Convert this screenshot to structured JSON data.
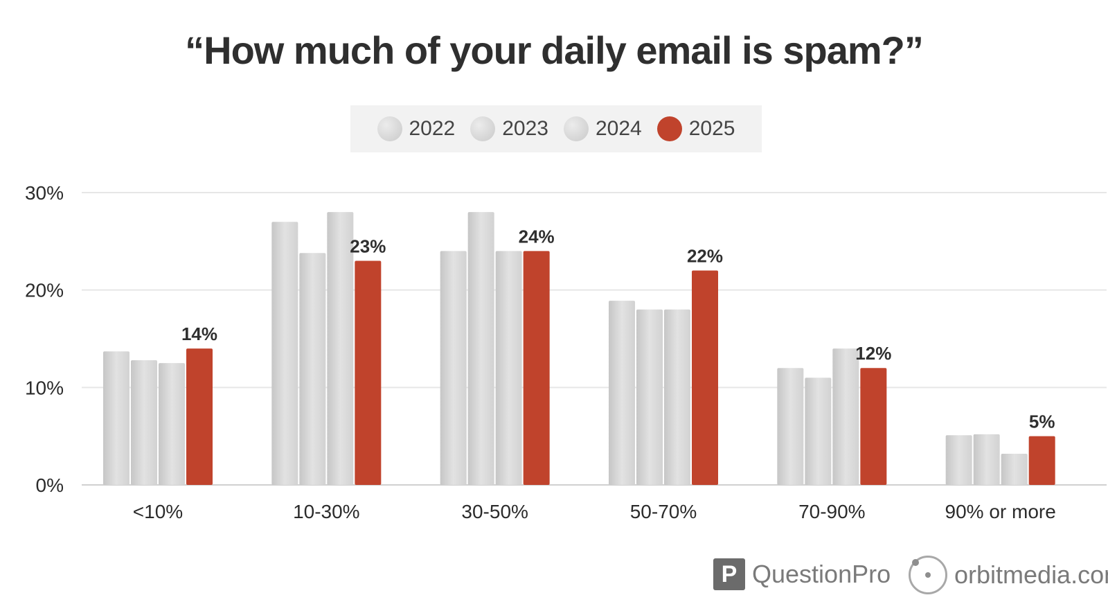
{
  "chart_data": {
    "type": "bar",
    "title": "“How much of your daily email is spam?”",
    "categories": [
      "<10%",
      "10-30%",
      "30-50%",
      "50-70%",
      "70-90%",
      "90% or more"
    ],
    "series": [
      {
        "name": "2022",
        "values": [
          13.7,
          27.0,
          24.0,
          18.9,
          12.0,
          5.1
        ],
        "color": "#d4d4d4"
      },
      {
        "name": "2023",
        "values": [
          12.8,
          23.8,
          28.0,
          18.0,
          11.0,
          5.2
        ],
        "color": "#d4d4d4"
      },
      {
        "name": "2024",
        "values": [
          12.5,
          28.0,
          24.0,
          18.0,
          14.0,
          3.2
        ],
        "color": "#d4d4d4"
      },
      {
        "name": "2025",
        "values": [
          14,
          23,
          24,
          22,
          12,
          5
        ],
        "color": "#c0432c"
      }
    ],
    "data_labels": [
      "14%",
      "23%",
      "24%",
      "22%",
      "12%",
      "5%"
    ],
    "ylim": [
      0,
      30
    ],
    "yticks": [
      0,
      10,
      20,
      30
    ],
    "ytick_labels": [
      "0%",
      "10%",
      "20%",
      "30%"
    ],
    "xlabel": "",
    "ylabel": "",
    "grid": true,
    "legend": "top-center"
  },
  "branding": {
    "questionpro_mark": "P",
    "questionpro": "QuestionPro",
    "orbit": "orbitmedia.com"
  }
}
